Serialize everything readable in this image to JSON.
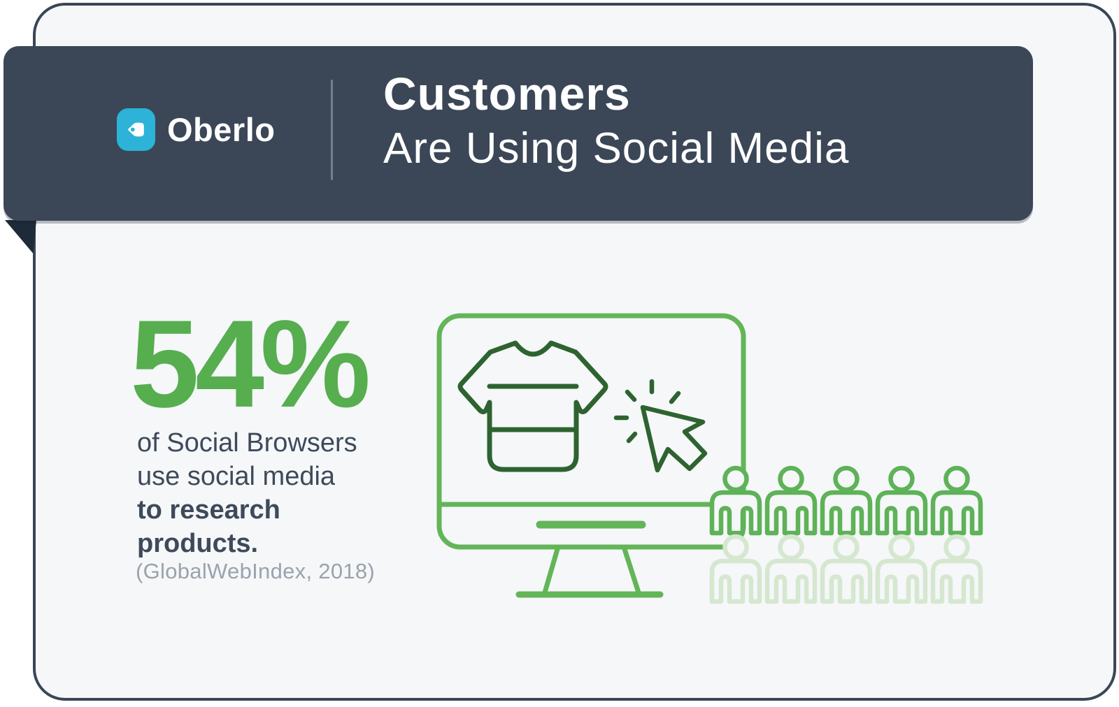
{
  "header": {
    "brand_name": "Oberlo",
    "brand_icon": "price-tag-icon",
    "title_line1": "Customers",
    "title_line2": "Are Using Social Media"
  },
  "stat": {
    "value": "54%",
    "lines_regular": [
      "of Social Browsers",
      "use social media"
    ],
    "lines_bold": [
      "to research",
      "products."
    ],
    "source": "(GlobalWebIndex, 2018)"
  },
  "illustration": {
    "icons": [
      "monitor-icon",
      "tshirt-icon",
      "click-cursor-icon",
      "person-icon"
    ]
  },
  "chart_data": {
    "type": "pictograph",
    "title": "Customers Are Using Social Media",
    "stat_percent": 54,
    "statement": "54% of Social Browsers use social media to research products.",
    "source": "(GlobalWebIndex, 2018)",
    "icons_total": 10,
    "icons_filled": 5.4,
    "icons_per_row": 5,
    "icon_unit": "person",
    "legend_position": "none",
    "grid": false
  },
  "colors": {
    "accent_green": "#56ae4f",
    "illustration_green": "#63b557",
    "dark_green": "#2e6330",
    "faded_green": "#d6e7d0",
    "banner_navy": "#3b4757",
    "fold_navy": "#1d2a39",
    "logo_teal": "#2cb3d7",
    "text_navy": "#3e4a5a",
    "text_gray": "#9aa3ac",
    "card_bg": "#f5f7f9"
  }
}
